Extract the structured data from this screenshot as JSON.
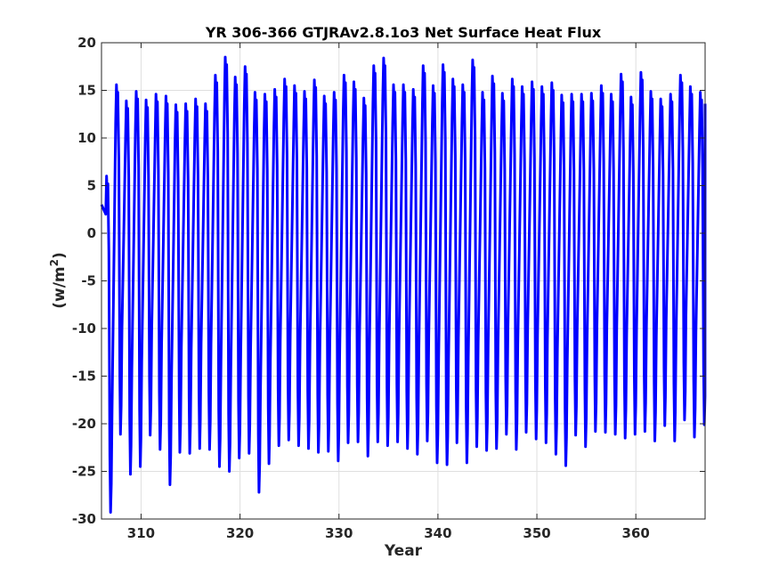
{
  "chart_data": {
    "type": "line",
    "title": "YR 306-366 GTJRAv2.8.1o3 Net Surface Heat Flux",
    "xlabel": "Year",
    "ylabel_base": "(w/m",
    "ylabel_sup": "2",
    "ylabel_close": ")",
    "xlim": [
      306,
      367
    ],
    "ylim": [
      -30,
      20
    ],
    "xticks": [
      310,
      320,
      330,
      340,
      350,
      360
    ],
    "yticks": [
      -30,
      -25,
      -20,
      -15,
      -10,
      -5,
      0,
      5,
      10,
      15,
      20
    ],
    "grid": true,
    "series_color": "#0000ff",
    "series": [
      {
        "years": [
          306,
          307,
          308,
          309,
          310,
          311,
          312,
          313,
          314,
          315,
          316,
          317,
          318,
          319,
          320,
          321,
          322,
          323,
          324,
          325,
          326,
          327,
          328,
          329,
          330,
          331,
          332,
          333,
          334,
          335,
          336,
          337,
          338,
          339,
          340,
          341,
          342,
          343,
          344,
          345,
          346,
          347,
          348,
          349,
          350,
          351,
          352,
          353,
          354,
          355,
          356,
          357,
          358,
          359,
          360,
          361,
          362,
          363,
          364,
          365,
          366
        ],
        "annual_max": [
          6.0,
          15.6,
          13.9,
          14.9,
          14.0,
          14.6,
          14.4,
          13.5,
          13.6,
          14.1,
          13.6,
          16.6,
          18.5,
          16.4,
          17.5,
          14.8,
          14.6,
          15.1,
          16.2,
          15.5,
          14.9,
          16.1,
          14.4,
          14.8,
          16.6,
          15.9,
          14.2,
          17.6,
          18.4,
          15.6,
          15.6,
          15.1,
          17.6,
          15.5,
          17.7,
          16.2,
          15.6,
          18.2,
          14.8,
          16.5,
          14.7,
          16.2,
          15.4,
          15.9,
          15.4,
          15.8,
          14.5,
          14.6,
          14.6,
          14.7,
          15.5,
          14.6,
          16.7,
          14.3,
          16.9,
          14.9,
          14.1,
          14.6,
          16.6,
          15.4,
          14.8
        ],
        "annual_min": [
          -29.3,
          -21.1,
          -25.3,
          -24.5,
          -21.2,
          -22.7,
          -26.4,
          -23.0,
          -23.1,
          -22.6,
          -22.7,
          -24.5,
          -25.0,
          -23.6,
          -23.1,
          -27.2,
          -24.2,
          -22.3,
          -21.7,
          -22.3,
          -22.6,
          -23.0,
          -22.9,
          -23.9,
          -22.0,
          -21.9,
          -23.4,
          -21.9,
          -22.3,
          -21.9,
          -22.6,
          -23.2,
          -21.8,
          -24.1,
          -24.3,
          -22.0,
          -24.1,
          -22.4,
          -22.8,
          -22.6,
          -21.1,
          -22.7,
          -20.9,
          -21.6,
          -22.0,
          -23.2,
          -24.4,
          -21.2,
          -22.4,
          -20.8,
          -20.9,
          -21.1,
          -21.5,
          -21.1,
          -20.8,
          -21.8,
          -20.2,
          -21.8,
          -19.6,
          -21.4,
          -20.1
        ],
        "start_value": 3.0,
        "end_value": 13.6
      }
    ]
  }
}
